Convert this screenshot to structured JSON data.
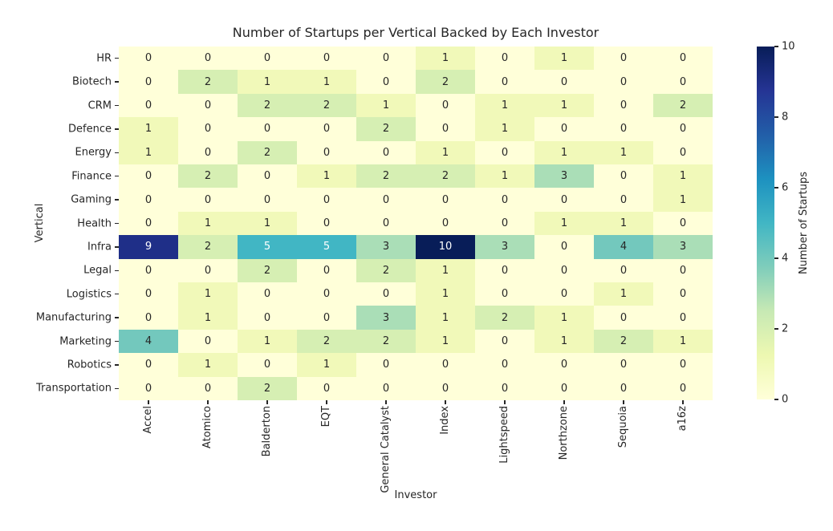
{
  "title": "Number of Startups per Vertical Backed by Each Investor",
  "xlabel": "Investor",
  "ylabel": "Vertical",
  "colorbar": {
    "label": "Number of Startups",
    "ticks": [
      0,
      2,
      4,
      6,
      8,
      10
    ],
    "min": 0,
    "max": 10
  },
  "colors": {
    "background": "#ffffff",
    "text": "#262626",
    "annot_light": "#ffffff",
    "colormap_name": "YlGnBu",
    "colormap_anchors": [
      "#ffffd9",
      "#edf8b1",
      "#c7e9b4",
      "#7fcdbb",
      "#41b6c4",
      "#1d91c0",
      "#225ea8",
      "#253494",
      "#081d58"
    ]
  },
  "chart_data": {
    "type": "heatmap",
    "title": "Number of Startups per Vertical Backed by Each Investor",
    "xlabel": "Investor",
    "ylabel": "Vertical",
    "colorbar_label": "Number of Startups",
    "colorbar_ticks": [
      0,
      2,
      4,
      6,
      8,
      10
    ],
    "vmin": 0,
    "vmax": 10,
    "grid": false,
    "x_categories": [
      "Accel",
      "Atomico",
      "Balderton",
      "EQT",
      "General Catalyst",
      "Index",
      "Lightspeed",
      "Northzone",
      "Sequoia",
      "a16z"
    ],
    "y_categories": [
      "HR",
      "Biotech",
      "CRM",
      "Defence",
      "Energy",
      "Finance",
      "Gaming",
      "Health",
      "Infra",
      "Legal",
      "Logistics",
      "Manufacturing",
      "Marketing",
      "Robotics",
      "Transportation"
    ],
    "values": [
      [
        0,
        0,
        0,
        0,
        0,
        1,
        0,
        1,
        0,
        0
      ],
      [
        0,
        2,
        1,
        1,
        0,
        2,
        0,
        0,
        0,
        0
      ],
      [
        0,
        0,
        2,
        2,
        1,
        0,
        1,
        1,
        0,
        2
      ],
      [
        1,
        0,
        0,
        0,
        2,
        0,
        1,
        0,
        0,
        0
      ],
      [
        1,
        0,
        2,
        0,
        0,
        1,
        0,
        1,
        1,
        0
      ],
      [
        0,
        2,
        0,
        1,
        2,
        2,
        1,
        3,
        0,
        1
      ],
      [
        0,
        0,
        0,
        0,
        0,
        0,
        0,
        0,
        0,
        1
      ],
      [
        0,
        1,
        1,
        0,
        0,
        0,
        0,
        1,
        1,
        0
      ],
      [
        9,
        2,
        5,
        5,
        3,
        10,
        3,
        0,
        4,
        3
      ],
      [
        0,
        0,
        2,
        0,
        2,
        1,
        0,
        0,
        0,
        0
      ],
      [
        0,
        1,
        0,
        0,
        0,
        1,
        0,
        0,
        1,
        0
      ],
      [
        0,
        1,
        0,
        0,
        3,
        1,
        2,
        1,
        0,
        0
      ],
      [
        4,
        0,
        1,
        2,
        2,
        1,
        0,
        1,
        2,
        1
      ],
      [
        0,
        1,
        0,
        1,
        0,
        0,
        0,
        0,
        0,
        0
      ],
      [
        0,
        0,
        2,
        0,
        0,
        0,
        0,
        0,
        0,
        0
      ]
    ]
  }
}
